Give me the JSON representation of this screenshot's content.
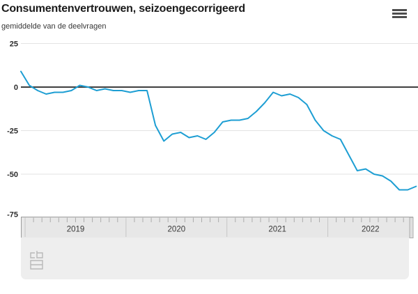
{
  "header": {
    "title": "Consumentenvertrouwen, seizoengecorrigeerd",
    "subtitle": "gemiddelde van de deelvragen"
  },
  "menu": {
    "icon": "hamburger-icon"
  },
  "footer": {
    "logo": "cbs-logo"
  },
  "colors": {
    "line": "#1d9ed3",
    "zero_line": "#3f3f3f",
    "grid": "#e3e3e3",
    "band_bg": "#e7e7e7",
    "band_border": "#9c9c9c",
    "band_tick": "#ababab",
    "band_divider": "#c6c6c6",
    "handle_fill": "#e0e0e0",
    "handle_edge": "#adadad",
    "panel_bg": "#eeeeee",
    "logo": "#b8b8b8"
  },
  "chart_data": {
    "type": "line",
    "title": "Consumentenvertrouwen, seizoengecorrigeerd",
    "subtitle": "gemiddelde van de deelvragen",
    "series_name": "Consumentenvertrouwen, seizoengecorrigeerd",
    "x": [
      "2018-12",
      "2019-01",
      "2019-02",
      "2019-03",
      "2019-04",
      "2019-05",
      "2019-06",
      "2019-07",
      "2019-08",
      "2019-09",
      "2019-10",
      "2019-11",
      "2019-12",
      "2020-01",
      "2020-02",
      "2020-03",
      "2020-04",
      "2020-05",
      "2020-06",
      "2020-07",
      "2020-08",
      "2020-09",
      "2020-10",
      "2020-11",
      "2020-12",
      "2021-01",
      "2021-02",
      "2021-03",
      "2021-04",
      "2021-05",
      "2021-06",
      "2021-07",
      "2021-08",
      "2021-09",
      "2021-10",
      "2021-11",
      "2021-12",
      "2022-01",
      "2022-02",
      "2022-03",
      "2022-04",
      "2022-05",
      "2022-06",
      "2022-07",
      "2022-08",
      "2022-09",
      "2022-10",
      "2022-11"
    ],
    "values": [
      9,
      1,
      -2,
      -4,
      -3,
      -3,
      -2,
      1,
      0,
      -2,
      -1,
      -2,
      -2,
      -3,
      -2,
      -2,
      -22,
      -31,
      -27,
      -26,
      -29,
      -28,
      -30,
      -26,
      -20,
      -19,
      -19,
      -18,
      -14,
      -9,
      -3,
      -5,
      -4,
      -6,
      -10,
      -19,
      -25,
      -28,
      -30,
      -39,
      -48,
      -47,
      -50,
      -51,
      -54,
      -59,
      -59,
      -57
    ],
    "ylim": [
      -75,
      25
    ],
    "yticks": [
      25,
      0,
      -25,
      -50,
      -75
    ],
    "xlabel": "",
    "ylabel": "",
    "year_labels": [
      "2019",
      "2020",
      "2021",
      "2022"
    ],
    "grid": true,
    "legend": "none"
  }
}
